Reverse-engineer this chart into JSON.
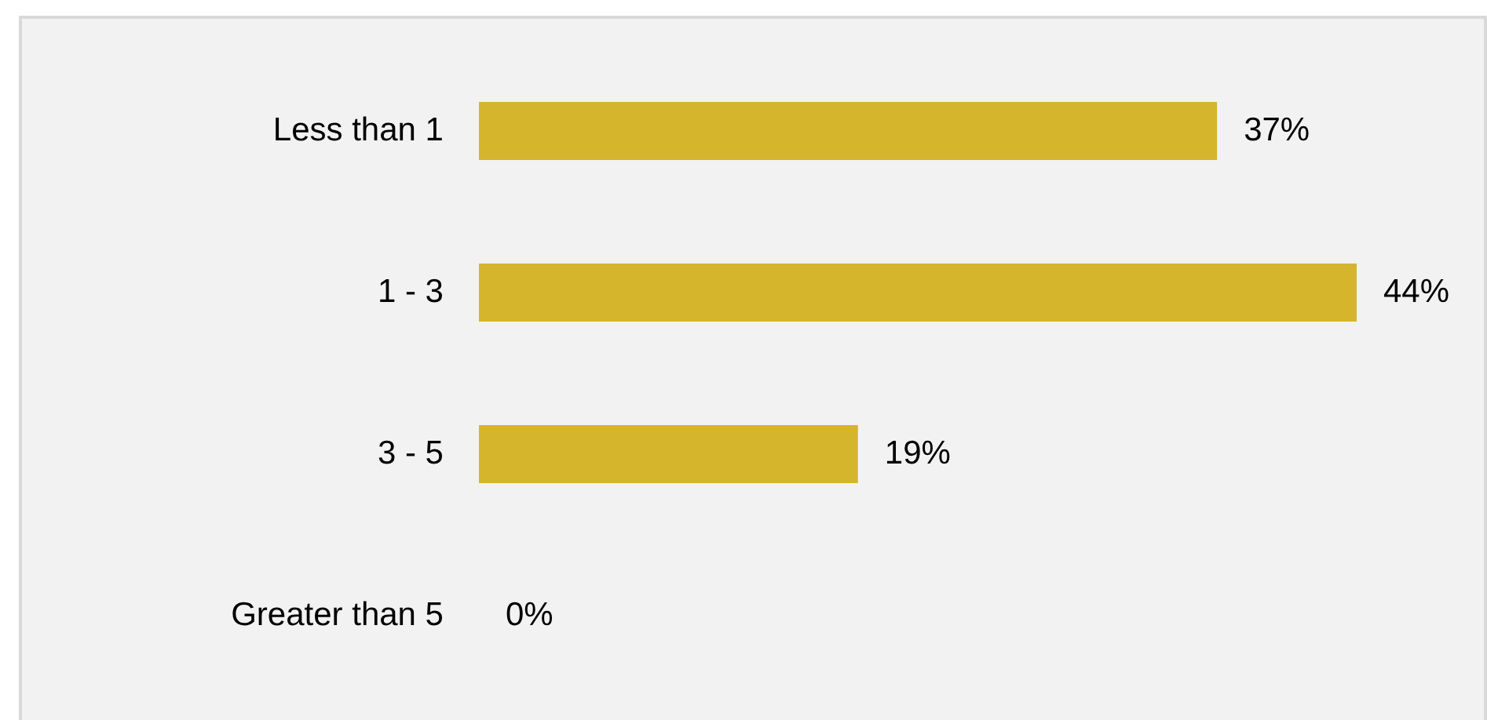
{
  "chart_data": {
    "type": "bar",
    "orientation": "horizontal",
    "categories": [
      "Less than 1",
      "1 - 3",
      "3 - 5",
      "Greater than 5"
    ],
    "values": [
      37,
      44,
      19,
      0
    ],
    "value_labels": [
      "37%",
      "44%",
      "19%",
      "0%"
    ],
    "color": "#d5b52c"
  }
}
